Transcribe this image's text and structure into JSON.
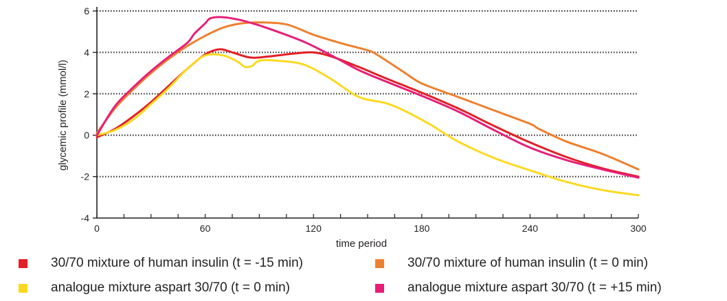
{
  "chart_data": {
    "type": "line",
    "title": "",
    "xlabel": "time period",
    "ylabel": "glycemic profile (mmol/l)",
    "xlim": [
      0,
      300
    ],
    "ylim": [
      -4,
      6
    ],
    "x_ticks": [
      0,
      60,
      120,
      180,
      240,
      300
    ],
    "y_ticks": [
      -4,
      -2,
      0,
      2,
      4,
      6
    ],
    "grid": "dotted horizontal at 6, 4, 2, 0, -2",
    "legend_position": "bottom",
    "series": [
      {
        "name": "30/70 mixture of human insulin (t = -15 min)",
        "color": "#e31e24",
        "points": [
          [
            0,
            -0.1
          ],
          [
            10,
            0.3
          ],
          [
            20,
            0.9
          ],
          [
            30,
            1.6
          ],
          [
            40,
            2.4
          ],
          [
            50,
            3.2
          ],
          [
            60,
            3.9
          ],
          [
            68,
            4.15
          ],
          [
            75,
            4.0
          ],
          [
            85,
            3.75
          ],
          [
            95,
            3.8
          ],
          [
            110,
            3.95
          ],
          [
            120,
            4.0
          ],
          [
            130,
            3.8
          ],
          [
            145,
            3.3
          ],
          [
            160,
            2.75
          ],
          [
            180,
            2.05
          ],
          [
            200,
            1.3
          ],
          [
            220,
            0.45
          ],
          [
            240,
            -0.35
          ],
          [
            260,
            -1.05
          ],
          [
            280,
            -1.6
          ],
          [
            300,
            -2.0
          ]
        ]
      },
      {
        "name": "30/70 mixture of human insulin (t = 0 min)",
        "color": "#ee7f2d",
        "points": [
          [
            0,
            0.1
          ],
          [
            10,
            1.3
          ],
          [
            20,
            2.2
          ],
          [
            30,
            3.0
          ],
          [
            40,
            3.7
          ],
          [
            50,
            4.3
          ],
          [
            60,
            4.8
          ],
          [
            70,
            5.2
          ],
          [
            80,
            5.4
          ],
          [
            90,
            5.45
          ],
          [
            105,
            5.35
          ],
          [
            120,
            4.85
          ],
          [
            135,
            4.45
          ],
          [
            150,
            4.1
          ],
          [
            155,
            3.9
          ],
          [
            170,
            3.05
          ],
          [
            180,
            2.5
          ],
          [
            200,
            1.85
          ],
          [
            220,
            1.2
          ],
          [
            240,
            0.55
          ],
          [
            245,
            0.3
          ],
          [
            260,
            -0.3
          ],
          [
            280,
            -0.9
          ],
          [
            300,
            -1.65
          ]
        ]
      },
      {
        "name": "analogue mixture aspart 30/70 (t = 0 min)",
        "color": "#fcd920",
        "points": [
          [
            0,
            0.0
          ],
          [
            10,
            0.25
          ],
          [
            20,
            0.75
          ],
          [
            30,
            1.5
          ],
          [
            40,
            2.3
          ],
          [
            50,
            3.2
          ],
          [
            60,
            3.85
          ],
          [
            70,
            3.85
          ],
          [
            78,
            3.55
          ],
          [
            82,
            3.3
          ],
          [
            86,
            3.35
          ],
          [
            90,
            3.6
          ],
          [
            100,
            3.6
          ],
          [
            115,
            3.4
          ],
          [
            130,
            2.7
          ],
          [
            145,
            1.85
          ],
          [
            160,
            1.55
          ],
          [
            170,
            1.2
          ],
          [
            185,
            0.5
          ],
          [
            200,
            -0.3
          ],
          [
            220,
            -1.1
          ],
          [
            240,
            -1.7
          ],
          [
            260,
            -2.25
          ],
          [
            280,
            -2.65
          ],
          [
            300,
            -2.9
          ]
        ]
      },
      {
        "name": "analogue mixture aspart 30/70 (t = +15 min)",
        "color": "#e71e78",
        "points": [
          [
            0,
            0.0
          ],
          [
            10,
            1.4
          ],
          [
            20,
            2.3
          ],
          [
            30,
            3.1
          ],
          [
            40,
            3.8
          ],
          [
            50,
            4.45
          ],
          [
            54,
            4.9
          ],
          [
            60,
            5.4
          ],
          [
            63,
            5.65
          ],
          [
            70,
            5.7
          ],
          [
            80,
            5.55
          ],
          [
            90,
            5.3
          ],
          [
            100,
            5.0
          ],
          [
            115,
            4.5
          ],
          [
            130,
            3.85
          ],
          [
            145,
            3.15
          ],
          [
            160,
            2.6
          ],
          [
            180,
            1.9
          ],
          [
            200,
            1.15
          ],
          [
            220,
            0.25
          ],
          [
            240,
            -0.6
          ],
          [
            260,
            -1.2
          ],
          [
            280,
            -1.65
          ],
          [
            300,
            -2.05
          ]
        ]
      }
    ]
  }
}
